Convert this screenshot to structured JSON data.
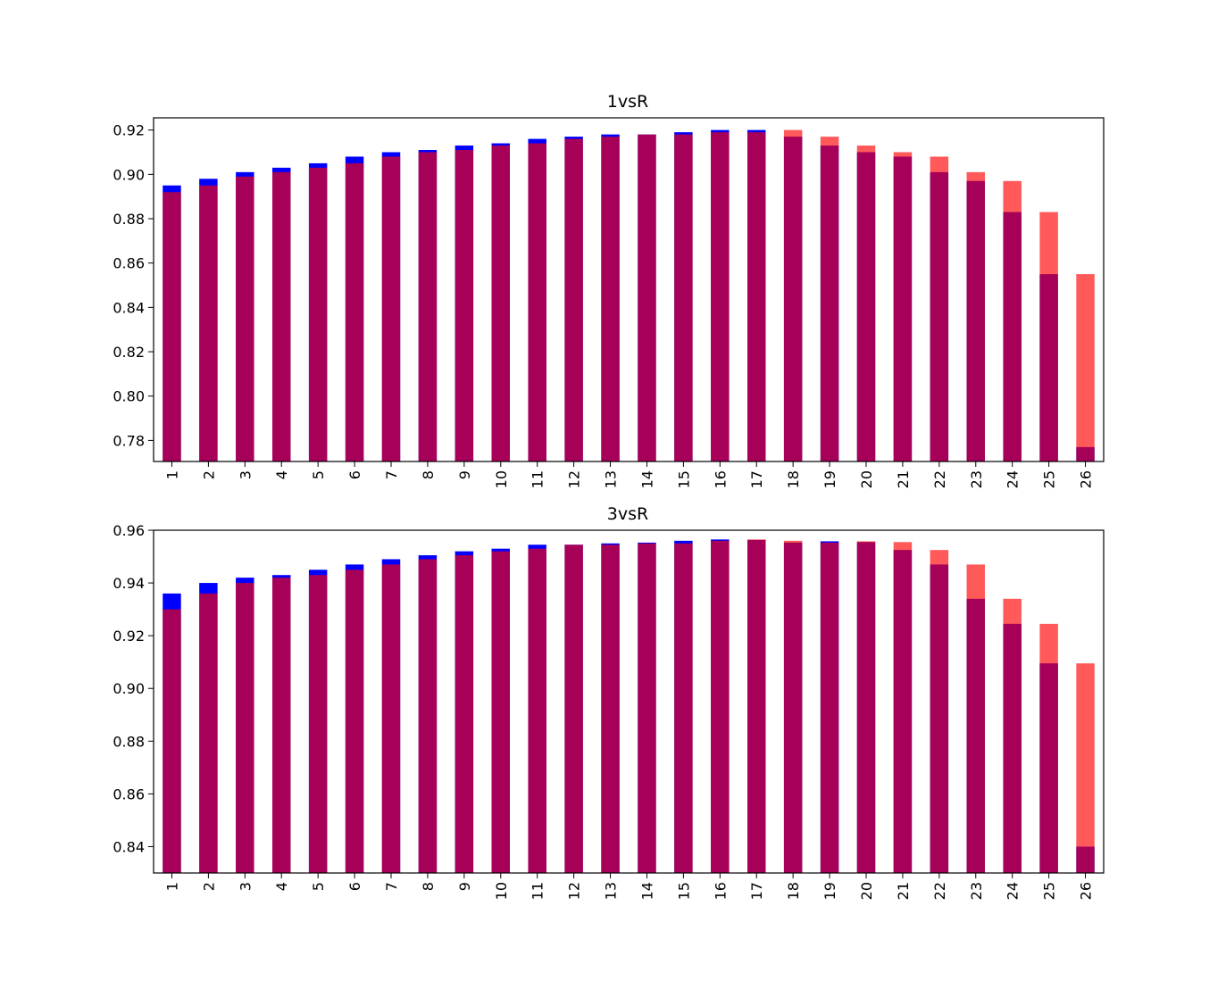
{
  "colors": {
    "series_blue": "#0000ff",
    "series_red": "#ff0000",
    "overlap": "#a50051",
    "background": "#ffffff",
    "axes": "#000000"
  },
  "chart_data": [
    {
      "type": "bar",
      "title": "1vsR",
      "xlabel": "",
      "ylabel": "",
      "categories": [
        "1",
        "2",
        "3",
        "4",
        "5",
        "6",
        "7",
        "8",
        "9",
        "10",
        "11",
        "12",
        "13",
        "14",
        "15",
        "16",
        "17",
        "18",
        "19",
        "20",
        "21",
        "22",
        "23",
        "24",
        "25",
        "26"
      ],
      "series": [
        {
          "color": "#0000ff",
          "opacity": 1.0,
          "values": [
            0.895,
            0.898,
            0.901,
            0.903,
            0.905,
            0.908,
            0.91,
            0.911,
            0.913,
            0.914,
            0.916,
            0.917,
            0.918,
            0.918,
            0.919,
            0.92,
            0.92,
            0.917,
            0.913,
            0.91,
            0.908,
            0.901,
            0.897,
            0.883,
            0.855,
            0.777
          ]
        },
        {
          "color": "#ff0000",
          "opacity": 0.65,
          "values": [
            0.892,
            0.895,
            0.899,
            0.901,
            0.903,
            0.905,
            0.908,
            0.91,
            0.911,
            0.913,
            0.914,
            0.916,
            0.917,
            0.918,
            0.918,
            0.919,
            0.919,
            0.92,
            0.917,
            0.913,
            0.91,
            0.908,
            0.901,
            0.897,
            0.883,
            0.855
          ]
        }
      ],
      "ylim": [
        0.7705,
        0.9255
      ],
      "yticks": [
        "0.78",
        "0.80",
        "0.82",
        "0.84",
        "0.86",
        "0.88",
        "0.90",
        "0.92"
      ],
      "ytick_values": [
        0.78,
        0.8,
        0.82,
        0.84,
        0.86,
        0.88,
        0.9,
        0.92
      ],
      "grid": false,
      "legend": "none"
    },
    {
      "type": "bar",
      "title": "3vsR",
      "xlabel": "",
      "ylabel": "",
      "categories": [
        "1",
        "2",
        "3",
        "4",
        "5",
        "6",
        "7",
        "8",
        "9",
        "10",
        "11",
        "12",
        "13",
        "14",
        "15",
        "16",
        "17",
        "18",
        "19",
        "20",
        "21",
        "22",
        "23",
        "24",
        "25",
        "26"
      ],
      "series": [
        {
          "color": "#0000ff",
          "opacity": 1.0,
          "values": [
            0.936,
            0.94,
            0.942,
            0.943,
            0.945,
            0.947,
            0.949,
            0.9505,
            0.952,
            0.953,
            0.9545,
            0.9545,
            0.955,
            0.9553,
            0.956,
            0.9565,
            0.9563,
            0.9553,
            0.9558,
            0.9555,
            0.9525,
            0.947,
            0.934,
            0.9245,
            0.9095,
            0.84
          ]
        },
        {
          "color": "#ff0000",
          "opacity": 0.65,
          "values": [
            0.93,
            0.936,
            0.94,
            0.942,
            0.943,
            0.945,
            0.947,
            0.949,
            0.9505,
            0.952,
            0.953,
            0.9545,
            0.9545,
            0.955,
            0.955,
            0.956,
            0.9565,
            0.956,
            0.9553,
            0.9558,
            0.9555,
            0.9525,
            0.947,
            0.934,
            0.9245,
            0.9095
          ]
        }
      ],
      "ylim": [
        0.83,
        0.96
      ],
      "yticks": [
        "0.84",
        "0.86",
        "0.88",
        "0.90",
        "0.92",
        "0.94",
        "0.96"
      ],
      "ytick_values": [
        0.84,
        0.86,
        0.88,
        0.9,
        0.92,
        0.94,
        0.96
      ],
      "grid": false,
      "legend": "none"
    }
  ]
}
